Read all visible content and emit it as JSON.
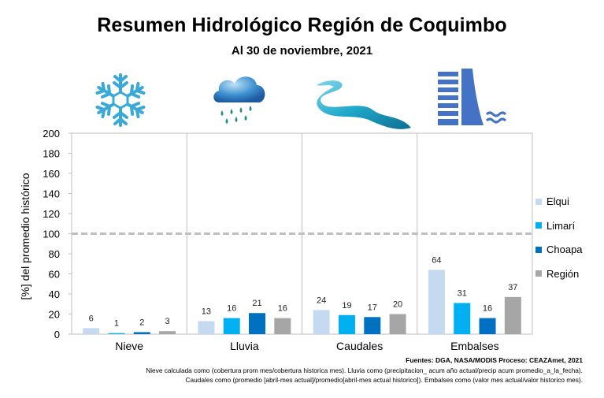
{
  "chart_data": {
    "type": "bar",
    "title": "Resumen Hidrológico Región de Coquimbo",
    "subtitle": "Al  30 de noviembre, 2021",
    "ylabel": "[%] del promedio histórico",
    "ylim": [
      0,
      200
    ],
    "yticks": [
      0,
      20,
      40,
      60,
      80,
      100,
      120,
      140,
      160,
      180,
      200
    ],
    "reference_line": 100,
    "grid": false,
    "legend_position": "right",
    "categories": [
      "Nieve",
      "Lluvia",
      "Caudales",
      "Embalses"
    ],
    "series": [
      {
        "name": "Elqui",
        "color": "#c5d9f1",
        "values": [
          6,
          13,
          24,
          64
        ]
      },
      {
        "name": "Limarí",
        "color": "#00b0f0",
        "values": [
          1,
          16,
          19,
          31
        ]
      },
      {
        "name": "Choapa",
        "color": "#0070c0",
        "values": [
          2,
          21,
          17,
          16
        ]
      },
      {
        "name": "Región",
        "color": "#a6a6a6",
        "values": [
          3,
          16,
          20,
          37
        ]
      }
    ]
  },
  "icons": [
    "snowflake-icon",
    "rain-cloud-icon",
    "river-icon",
    "dam-icon"
  ],
  "sources": "Fuentes: DGA, NASA/MODIS Proceso: CEAZAmet, 2021",
  "notes": [
    "Nieve calculada como (cobertura prom mes/cobertura historica mes). Lluvia como (precipitacion_ acum año actual/precip acum promedio_a_la_fecha).",
    "Caudales como (promedio [abril-mes actual]/promedio[abril-mes actual historico]). Embalses como (valor mes actual/valor  historico mes)."
  ]
}
